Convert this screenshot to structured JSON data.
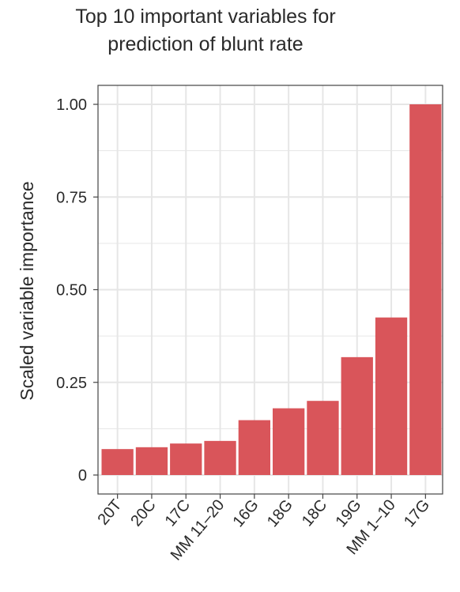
{
  "chart_data": {
    "type": "bar",
    "title": [
      "Top 10 important variables for",
      "prediction of blunt rate"
    ],
    "xlabel": "",
    "ylabel": "Scaled variable importance",
    "categories": [
      "20T",
      "20C",
      "17C",
      "MM 11–20",
      "16G",
      "18G",
      "18C",
      "19G",
      "MM 1–10",
      "17G"
    ],
    "values": [
      0.07,
      0.075,
      0.085,
      0.092,
      0.148,
      0.18,
      0.2,
      0.318,
      0.425,
      1.0
    ],
    "ylim": [
      0,
      1.0
    ],
    "yticks": [
      0,
      0.25,
      0.5,
      0.75,
      1.0
    ],
    "ytick_labels": [
      "0",
      "0.25",
      "0.50",
      "0.75",
      "1.00"
    ],
    "bar_color": "#d9555a",
    "grid": true,
    "grid_color": "#e6e6e6",
    "frame_color": "#444444",
    "legend": "none"
  }
}
